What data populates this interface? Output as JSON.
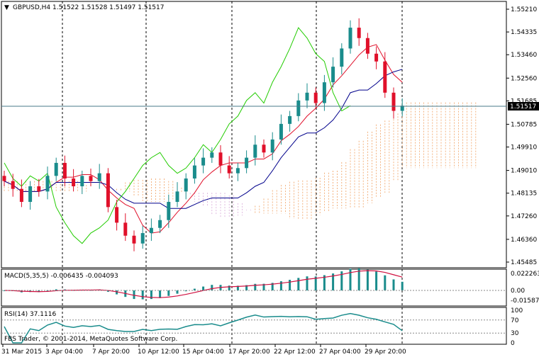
{
  "symbol_header": {
    "arrow": "▼",
    "text": "GBPUSD,H4  1.51522 1.51528 1.51497 1.51517"
  },
  "price_axis": [
    "1.55210",
    "1.54335",
    "1.53460",
    "1.52560",
    "1.51685",
    "1.50785",
    "1.49910",
    "1.49010",
    "1.48135",
    "1.47260",
    "1.46360",
    "1.45485"
  ],
  "current_price": "1.51517",
  "macd": {
    "label": "MACD(5,35,5) -0.006435 -0.004093",
    "axis": [
      "0.022263",
      "0.00",
      "-0.015873"
    ]
  },
  "rsi": {
    "label": "RSI(14) 37.1116",
    "axis": [
      "100",
      "70",
      "30",
      "0"
    ]
  },
  "copyright": "FBS Trader, © 2001-2014, MetaQuotes Software Corp.",
  "time_axis": [
    "31 Mar 2015",
    "3 Apr 04:00",
    "7 Apr 20:00",
    "10 Apr 12:00",
    "15 Apr 04:00",
    "17 Apr 20:00",
    "22 Apr 12:00",
    "27 Apr 04:00",
    "29 Apr 20:00"
  ],
  "colors": {
    "bull": "#1a8c8c",
    "bear": "#e0102a",
    "tenkan": "#e0102a",
    "kijun": "#00008b",
    "chikou": "#22cc00",
    "cloud_up": "#f0a060",
    "cloud_down": "#d8a8d8",
    "macd_hist": "#1a8c8c",
    "macd_signal": "#d01040"
  },
  "chart_data": {
    "type": "candlestick",
    "symbol": "GBPUSD",
    "timeframe": "H4",
    "last_bar": {
      "open": 1.51522,
      "high": 1.51528,
      "low": 1.51497,
      "close": 1.51517
    },
    "ylim": [
      1.45485,
      1.5521
    ],
    "indicators": [
      "Ichimoku",
      "MACD(5,35,5)",
      "RSI(14)"
    ],
    "approx_closes": [
      1.486,
      1.483,
      1.478,
      1.484,
      1.482,
      1.488,
      1.493,
      1.487,
      1.484,
      1.488,
      1.486,
      1.489,
      1.476,
      1.47,
      1.465,
      1.462,
      1.466,
      1.468,
      1.471,
      1.478,
      1.482,
      1.487,
      1.492,
      1.495,
      1.497,
      1.492,
      1.489,
      1.491,
      1.495,
      1.5,
      1.497,
      1.502,
      1.508,
      1.511,
      1.517,
      1.52,
      1.516,
      1.524,
      1.53,
      1.537,
      1.545,
      1.541,
      1.535,
      1.532,
      1.52,
      1.513,
      1.515
    ]
  }
}
